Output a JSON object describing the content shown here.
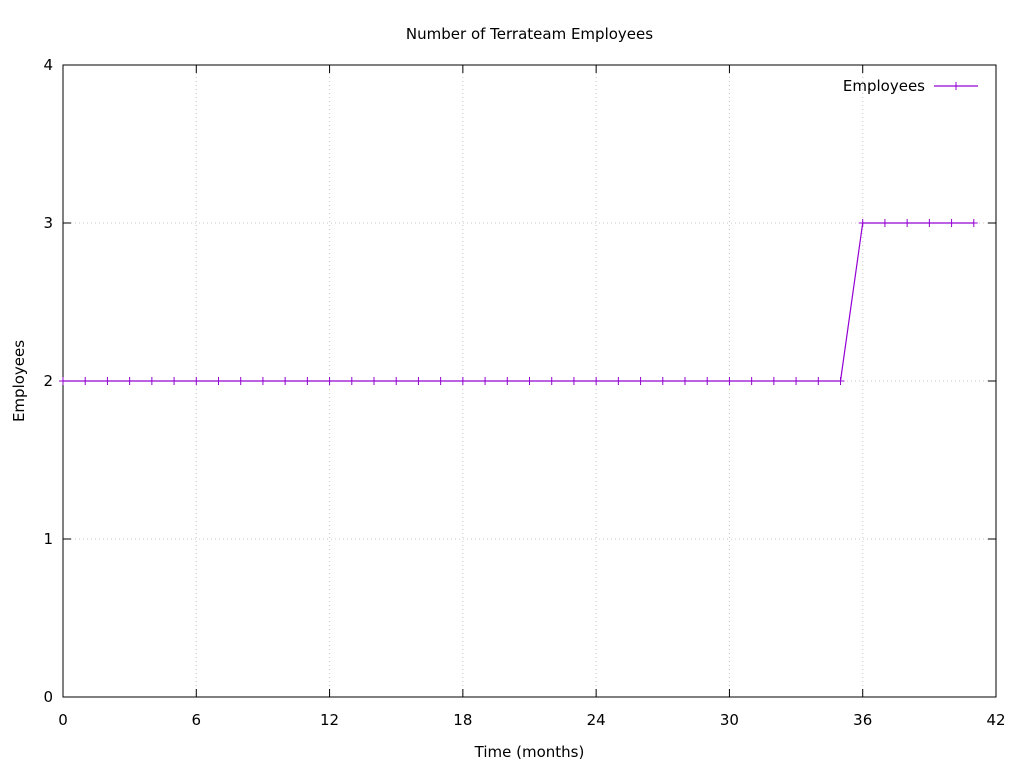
{
  "chart_data": {
    "type": "line",
    "title": "Number of Terrateam Employees",
    "xlabel": "Time (months)",
    "ylabel": "Employees",
    "xlim": [
      0,
      42
    ],
    "ylim": [
      0,
      4
    ],
    "xticks": [
      0,
      6,
      12,
      18,
      24,
      30,
      36,
      42
    ],
    "yticks": [
      0,
      1,
      2,
      3,
      4
    ],
    "grid": true,
    "legend_position": "top-right",
    "series": [
      {
        "name": "Employees",
        "color": "#9400d3",
        "marker": "plus",
        "x": [
          0,
          1,
          2,
          3,
          4,
          5,
          6,
          7,
          8,
          9,
          10,
          11,
          12,
          13,
          14,
          15,
          16,
          17,
          18,
          19,
          20,
          21,
          22,
          23,
          24,
          25,
          26,
          27,
          28,
          29,
          30,
          31,
          32,
          33,
          34,
          35,
          36,
          37,
          38,
          39,
          40,
          41
        ],
        "y": [
          2,
          2,
          2,
          2,
          2,
          2,
          2,
          2,
          2,
          2,
          2,
          2,
          2,
          2,
          2,
          2,
          2,
          2,
          2,
          2,
          2,
          2,
          2,
          2,
          2,
          2,
          2,
          2,
          2,
          2,
          2,
          2,
          2,
          2,
          2,
          2,
          3,
          3,
          3,
          3,
          3,
          3
        ]
      }
    ]
  }
}
